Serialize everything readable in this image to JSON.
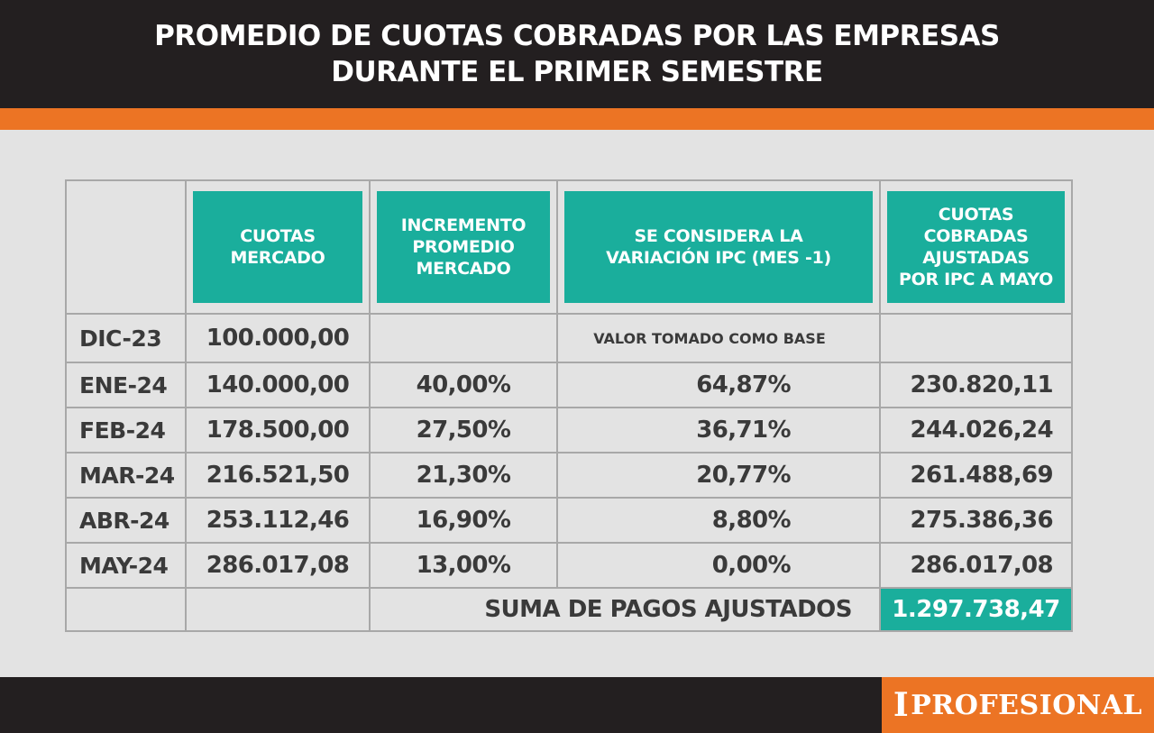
{
  "header": {
    "title_line1": "PROMEDIO DE CUOTAS COBRADAS POR LAS EMPRESAS",
    "title_line2": "DURANTE EL PRIMER SEMESTRE"
  },
  "logo": {
    "initial": "I",
    "rest": "PROFESIONAL"
  },
  "colors": {
    "header_bg": "#231f20",
    "accent_orange": "#ec7424",
    "teal": "#1aae9c",
    "background": "#e3e3e3"
  },
  "chart_data": {
    "type": "table",
    "columns": [
      "",
      "CUOTAS\nMERCADO",
      "INCREMENTO\nPROMEDIO\nMERCADO",
      "SE CONSIDERA LA\nVARIACIÓN IPC (MES -1)",
      "CUOTAS\nCOBRADAS\nAJUSTADAS\nPOR IPC A MAYO"
    ],
    "rows": [
      {
        "month": "DIC-23",
        "cuota": "100.000,00",
        "incremento": "",
        "ipc": "",
        "ajustada": ""
      },
      {
        "month": "ENE-24",
        "cuota": "140.000,00",
        "incremento": "40,00%",
        "ipc": "64,87%",
        "ajustada": "230.820,11"
      },
      {
        "month": "FEB-24",
        "cuota": "178.500,00",
        "incremento": "27,50%",
        "ipc": "36,71%",
        "ajustada": "244.026,24"
      },
      {
        "month": "MAR-24",
        "cuota": "216.521,50",
        "incremento": "21,30%",
        "ipc": "20,77%",
        "ajustada": "261.488,69"
      },
      {
        "month": "ABR-24",
        "cuota": "253.112,46",
        "incremento": "16,90%",
        "ipc": "8,80%",
        "ajustada": "275.386,36"
      },
      {
        "month": "MAY-24",
        "cuota": "286.017,08",
        "incremento": "13,00%",
        "ipc": "0,00%",
        "ajustada": "286.017,08"
      }
    ],
    "base_note": "VALOR TOMADO COMO BASE",
    "total_label": "SUMA DE PAGOS AJUSTADOS",
    "total_value": "1.297.738,47"
  }
}
